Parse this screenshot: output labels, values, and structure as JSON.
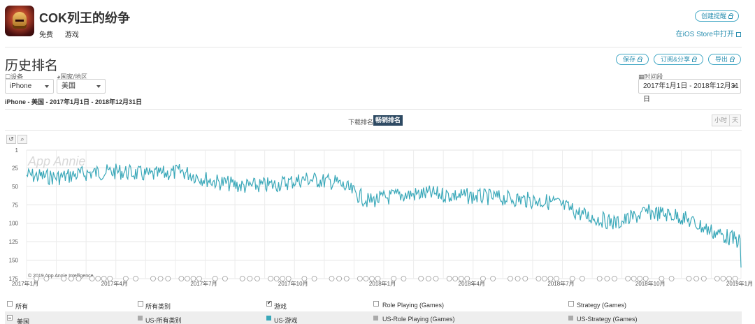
{
  "app": {
    "title": "COK列王的纷争",
    "price": "免费",
    "category": "游戏",
    "create_alert_label": "创建提醒",
    "open_store_label": "在iOS Store中打开"
  },
  "page": {
    "section_title": "历史排名",
    "save_label": "保存",
    "subscribe_label": "订阅&分享",
    "export_label": "导出"
  },
  "filters": {
    "device_label": "设备",
    "device_value": "iPhone",
    "country_label": "国家/地区",
    "country_value": "美国",
    "period_label": "时间段",
    "period_value": "2017年1月1日 - 2018年12月31日"
  },
  "summary_text": "iPhone - 美国 - 2017年1月1日 - 2018年12月31日",
  "rank_tabs": {
    "download": "下载排名",
    "sales": "畅销排名",
    "active": "sales"
  },
  "granularity": {
    "hour": "小时",
    "day": "天"
  },
  "toolbar": {
    "reset_icon": "undo-icon",
    "zoom_icon": "zoom-icon"
  },
  "chart_data": {
    "type": "line",
    "watermark": "App Annie",
    "credit": "© 2019 App Annie Intelligence",
    "y_axis": {
      "reversed": true,
      "ylim": [
        1,
        175
      ],
      "ticks": [
        "1",
        "25",
        "50",
        "75",
        "100",
        "125",
        "150",
        "175"
      ]
    },
    "x_axis": {
      "ticks": [
        "2017年1月",
        "2017年4月",
        "2017年7月",
        "2017年10月",
        "2018年1月",
        "2018年4月",
        "2018年7月",
        "2018年10月",
        "2019年1月"
      ]
    },
    "series": [
      {
        "color": "#3aa8b9",
        "x": [
          "2017-01",
          "2017-02",
          "2017-03",
          "2017-04",
          "2017-05",
          "2017-06",
          "2017-07",
          "2017-08",
          "2017-09",
          "2017-10",
          "2017-11",
          "2017-12",
          "2018-01",
          "2018-02",
          "2018-03",
          "2018-04",
          "2018-05",
          "2018-06",
          "2018-07",
          "2018-08",
          "2018-09",
          "2018-10",
          "2018-11",
          "2018-12"
        ],
        "values": [
          35,
          38,
          32,
          30,
          35,
          30,
          43,
          50,
          48,
          40,
          45,
          70,
          62,
          60,
          63,
          65,
          68,
          72,
          90,
          100,
          85,
          90,
          110,
          125
        ]
      }
    ],
    "grid": true,
    "legend": "bottom"
  },
  "legend": {
    "headers": [
      {
        "label": "所有",
        "checked": false
      },
      {
        "label": "所有类别",
        "checked": false
      },
      {
        "label": "游戏",
        "checked": true
      },
      {
        "label": "Role Playing (Games)",
        "checked": false
      },
      {
        "label": "Strategy (Games)",
        "checked": false
      }
    ],
    "row_country": "美国",
    "series_labels": [
      {
        "label": "US-所有类别",
        "color": "#aaaaaa"
      },
      {
        "label": "US-游戏",
        "color": "#3aa8b9"
      },
      {
        "label": "US-Role Playing (Games)",
        "color": "#aaaaaa"
      },
      {
        "label": "US-Strategy (Games)",
        "color": "#aaaaaa"
      }
    ]
  }
}
